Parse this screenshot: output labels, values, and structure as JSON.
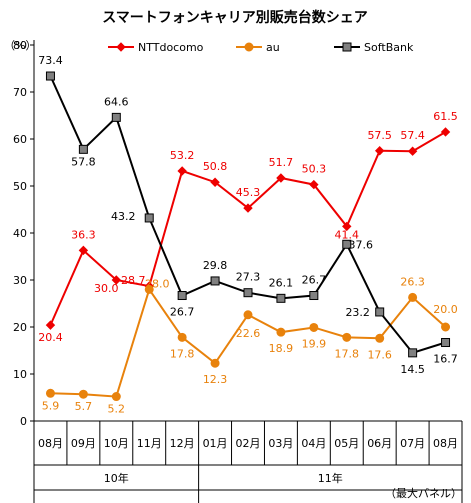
{
  "chart_data": {
    "type": "line",
    "title": "スマートフォンキャリア別販売台数シェア",
    "y_unit_label": "（%）",
    "note": "（最大パネル）",
    "ylim": [
      0,
      80
    ],
    "y_ticks": [
      0,
      10,
      20,
      30,
      40,
      50,
      60,
      70,
      80
    ],
    "grid": false,
    "legend_position": "top",
    "categories": [
      "08月",
      "09月",
      "10月",
      "11月",
      "12月",
      "01月",
      "02月",
      "03月",
      "04月",
      "05月",
      "06月",
      "07月",
      "08月"
    ],
    "year_groups": [
      {
        "label": "10年",
        "start": 0,
        "end": 4
      },
      {
        "label": "11年",
        "start": 5,
        "end": 12
      }
    ],
    "series": [
      {
        "name": "NTTdocomo",
        "color": "#ee0000",
        "marker": "diamond",
        "values": [
          20.4,
          36.3,
          30.0,
          28.7,
          53.2,
          50.8,
          45.3,
          51.7,
          50.3,
          41.4,
          57.5,
          57.4,
          61.5
        ],
        "labels": [
          "20.4",
          "36.3",
          "30.0",
          "28.7",
          "53.2",
          "50.8",
          "45.3",
          "51.7",
          "50.3",
          "41.4",
          "57.5",
          "57.4",
          "61.5"
        ]
      },
      {
        "name": "au",
        "color": "#e8820c",
        "marker": "circle",
        "values": [
          5.9,
          5.7,
          5.2,
          28.0,
          17.8,
          12.3,
          22.6,
          18.9,
          19.9,
          17.8,
          17.6,
          26.3,
          20.0
        ],
        "labels": [
          "5.9",
          "5.7",
          "5.2",
          "28.0",
          "17.8",
          "12.3",
          "22.6",
          "18.9",
          "19.9",
          "17.8",
          "17.6",
          "26.3",
          "20.0"
        ]
      },
      {
        "name": "SoftBank",
        "color": "#000000",
        "marker": "square",
        "values": [
          73.4,
          57.8,
          64.6,
          43.2,
          26.7,
          29.8,
          27.3,
          26.1,
          26.7,
          37.6,
          23.2,
          14.5,
          16.7
        ],
        "labels": [
          "73.4",
          "57.8",
          "64.6",
          "43.2",
          "26.7",
          "29.8",
          "27.3",
          "26.1",
          "26.7",
          "37.6",
          "23.2",
          "14.5",
          "16.7"
        ]
      }
    ]
  }
}
